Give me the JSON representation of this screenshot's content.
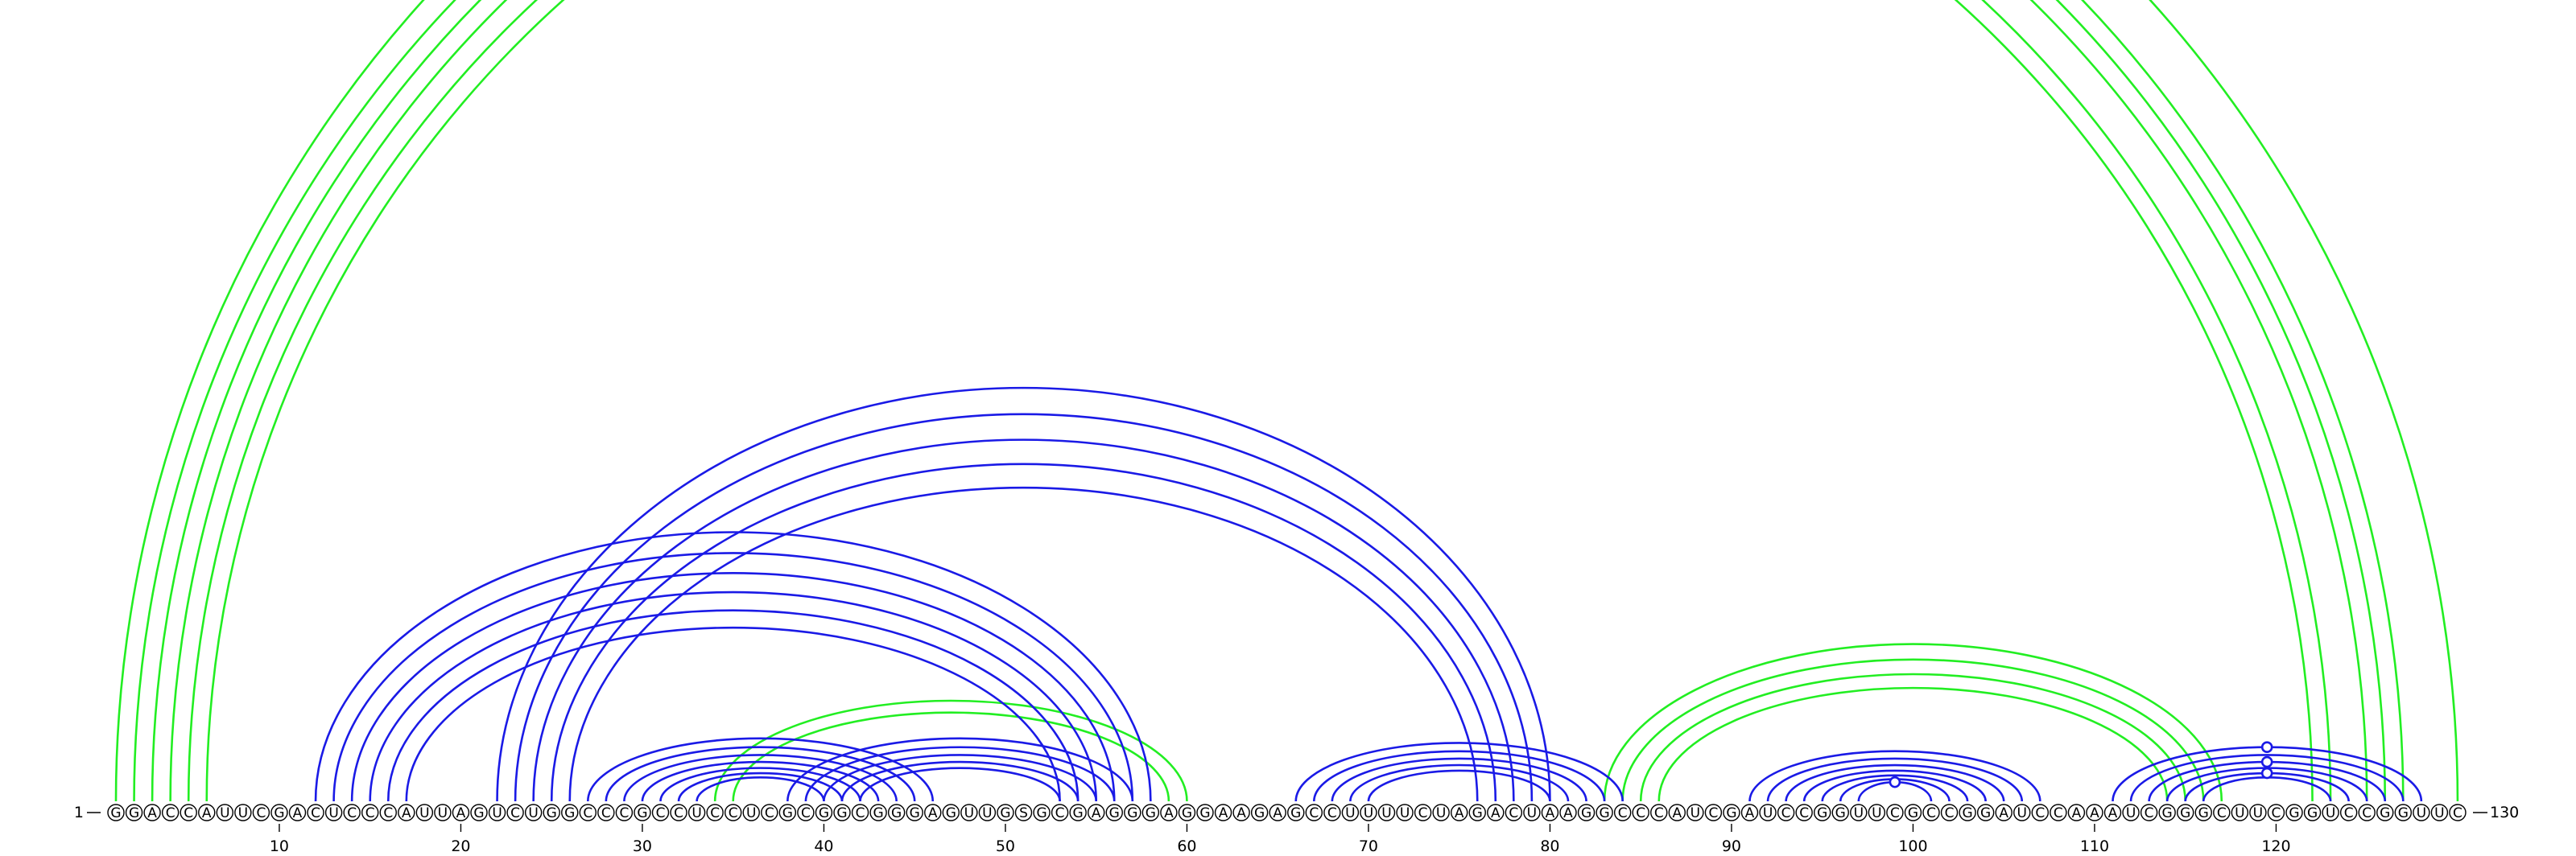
{
  "sequence": "GGACCAUUCGACUCCCAUUAGUCUGGCCCGCCUCCUCGCGGCGGGAGUUGSGCGAGGGAGGAAGAGCCUUUUCUAGACUAAGGCCCAUCGAUCCGGUUCGCCGGAUCCAAAUCGGGCUUCGGUCCGGUUC",
  "start_label": "1",
  "end_label": "130",
  "ticks": [
    "10",
    "20",
    "30",
    "40",
    "50",
    "60",
    "70",
    "80",
    "90",
    "100",
    "110",
    "120"
  ],
  "colors": {
    "green": "#22ee22",
    "blue": "#1a1ae6"
  },
  "arc_groups": [
    {
      "color": "green",
      "pairs": [
        [
          1,
          130
        ],
        [
          2,
          127
        ],
        [
          3,
          126
        ],
        [
          4,
          125
        ],
        [
          5,
          123
        ],
        [
          6,
          122
        ]
      ]
    },
    {
      "color": "green",
      "pairs": [
        [
          34,
          60
        ],
        [
          35,
          59
        ]
      ]
    },
    {
      "color": "green",
      "pairs": [
        [
          83,
          117
        ],
        [
          84,
          116
        ],
        [
          85,
          115
        ],
        [
          86,
          114
        ]
      ]
    },
    {
      "color": "blue",
      "pairs": [
        [
          12,
          58
        ],
        [
          13,
          57
        ],
        [
          14,
          56
        ],
        [
          15,
          55
        ],
        [
          16,
          54
        ],
        [
          17,
          53
        ]
      ]
    },
    {
      "color": "blue",
      "pairs": [
        [
          22,
          80
        ],
        [
          23,
          79
        ],
        [
          24,
          78
        ],
        [
          25,
          77
        ],
        [
          26,
          76
        ]
      ]
    },
    {
      "color": "blue",
      "pairs": [
        [
          27,
          46
        ],
        [
          28,
          45
        ],
        [
          29,
          44
        ],
        [
          30,
          43
        ],
        [
          31,
          42
        ],
        [
          32,
          41
        ],
        [
          33,
          40
        ]
      ]
    },
    {
      "color": "blue",
      "pairs": [
        [
          38,
          57
        ],
        [
          39,
          56
        ],
        [
          40,
          55
        ],
        [
          41,
          54
        ],
        [
          42,
          53
        ]
      ]
    },
    {
      "color": "blue",
      "pairs": [
        [
          66,
          84
        ],
        [
          67,
          83
        ],
        [
          68,
          82
        ],
        [
          69,
          81
        ],
        [
          70,
          80
        ]
      ]
    },
    {
      "color": "blue",
      "pairs": [
        [
          91,
          107
        ],
        [
          92,
          106
        ],
        [
          93,
          105
        ],
        [
          94,
          104
        ],
        [
          95,
          103
        ],
        [
          96,
          102
        ],
        [
          97,
          101
        ]
      ]
    },
    {
      "color": "blue",
      "pairs": [
        [
          111,
          128
        ],
        [
          112,
          127
        ],
        [
          113,
          126
        ],
        [
          114,
          125
        ],
        [
          115,
          124
        ],
        [
          116,
          123
        ]
      ]
    }
  ],
  "markers": [
    {
      "color": "green",
      "pair": [
        1,
        130
      ]
    },
    {
      "color": "blue",
      "pair": [
        97,
        101
      ]
    },
    {
      "color": "blue",
      "pair": [
        111,
        128
      ]
    },
    {
      "color": "blue",
      "pair": [
        113,
        126
      ]
    },
    {
      "color": "blue",
      "pair": [
        115,
        124
      ]
    }
  ]
}
